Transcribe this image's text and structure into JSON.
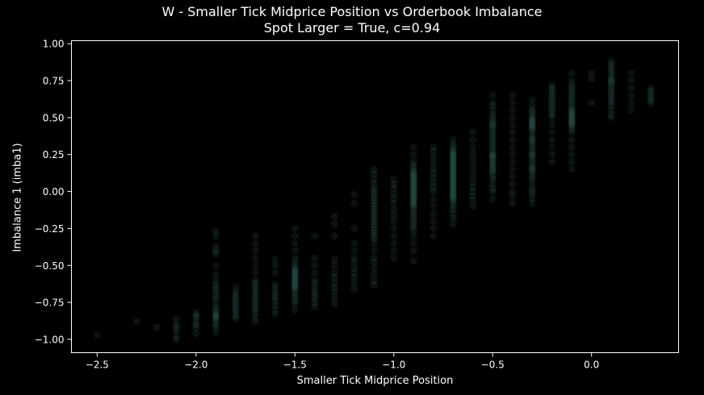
{
  "chart_data": {
    "type": "scatter",
    "title": "W - Smaller Tick Midprice Position vs Orderbook Imbalance",
    "subtitle": "Spot Larger = True, c=0.94",
    "xlabel": "Smaller Tick Midprice Position",
    "ylabel": "Imbalance 1 (imba1)",
    "xlim": [
      -2.63,
      0.44
    ],
    "ylim": [
      -1.09,
      1.02
    ],
    "xticks": [
      -2.5,
      -2.0,
      -1.5,
      -1.0,
      -0.5,
      0.0
    ],
    "xtick_labels": [
      "−2.5",
      "−2.0",
      "−1.5",
      "−1.0",
      "−0.5",
      "0.0"
    ],
    "yticks": [
      -1.0,
      -0.75,
      -0.5,
      -0.25,
      0.0,
      0.25,
      0.5,
      0.75,
      1.0
    ],
    "ytick_labels": [
      "−1.00",
      "−0.75",
      "−0.50",
      "−0.25",
      "0.00",
      "0.25",
      "0.50",
      "0.75",
      "1.00"
    ],
    "grid": false,
    "marker_color": "#4a9e8c",
    "point_alpha": 0.12,
    "series": [
      {
        "name": "imba1",
        "x": [
          -2.5,
          -2.3,
          -2.2,
          -2.1,
          -2.1,
          -2.1,
          -2.1,
          -2.1,
          -2.1,
          -2.0,
          -2.0,
          -2.0,
          -2.0,
          -2.0,
          -2.0,
          -2.0,
          -1.9,
          -1.9,
          -1.9,
          -1.9,
          -1.9,
          -1.9,
          -1.9,
          -1.9,
          -1.9,
          -1.9,
          -1.9,
          -1.9,
          -1.9,
          -1.9,
          -1.9,
          -1.9,
          -1.9,
          -1.9,
          -1.9,
          -1.9,
          -1.9,
          -1.9,
          -1.9,
          -1.9,
          -1.9,
          -1.8,
          -1.8,
          -1.8,
          -1.8,
          -1.8,
          -1.8,
          -1.8,
          -1.8,
          -1.8,
          -1.8,
          -1.8,
          -1.7,
          -1.7,
          -1.7,
          -1.7,
          -1.7,
          -1.7,
          -1.7,
          -1.7,
          -1.7,
          -1.7,
          -1.7,
          -1.7,
          -1.7,
          -1.7,
          -1.7,
          -1.7,
          -1.7,
          -1.7,
          -1.7,
          -1.7,
          -1.6,
          -1.6,
          -1.6,
          -1.6,
          -1.6,
          -1.6,
          -1.6,
          -1.6,
          -1.6,
          -1.6,
          -1.6,
          -1.6,
          -1.5,
          -1.5,
          -1.5,
          -1.5,
          -1.5,
          -1.5,
          -1.5,
          -1.5,
          -1.5,
          -1.5,
          -1.5,
          -1.5,
          -1.5,
          -1.5,
          -1.5,
          -1.5,
          -1.5,
          -1.5,
          -1.5,
          -1.5,
          -1.5,
          -1.5,
          -1.5,
          -1.5,
          -1.5,
          -1.5,
          -1.5,
          -1.5,
          -1.4,
          -1.4,
          -1.4,
          -1.4,
          -1.4,
          -1.4,
          -1.4,
          -1.4,
          -1.4,
          -1.4,
          -1.4,
          -1.4,
          -1.3,
          -1.3,
          -1.3,
          -1.3,
          -1.3,
          -1.3,
          -1.3,
          -1.3,
          -1.3,
          -1.3,
          -1.3,
          -1.3,
          -1.2,
          -1.2,
          -1.2,
          -1.2,
          -1.2,
          -1.2,
          -1.2,
          -1.2,
          -1.2,
          -1.2,
          -1.2,
          -1.2,
          -1.1,
          -1.1,
          -1.1,
          -1.1,
          -1.1,
          -1.1,
          -1.1,
          -1.1,
          -1.1,
          -1.1,
          -1.1,
          -1.1,
          -1.1,
          -1.1,
          -1.1,
          -1.1,
          -1.1,
          -1.1,
          -1.1,
          -1.1,
          -1.1,
          -1.1,
          -1.1,
          -1.1,
          -1.1,
          -1.1,
          -1.1,
          -1.1,
          -1.1,
          -1.1,
          -1.0,
          -1.0,
          -1.0,
          -1.0,
          -1.0,
          -1.0,
          -1.0,
          -1.0,
          -1.0,
          -1.0,
          -1.0,
          -1.0,
          -1.0,
          -1.0,
          -0.9,
          -0.9,
          -0.9,
          -0.9,
          -0.9,
          -0.9,
          -0.9,
          -0.9,
          -0.9,
          -0.9,
          -0.9,
          -0.9,
          -0.9,
          -0.9,
          -0.9,
          -0.9,
          -0.9,
          -0.9,
          -0.9,
          -0.9,
          -0.9,
          -0.9,
          -0.9,
          -0.9,
          -0.9,
          -0.9,
          -0.9,
          -0.9,
          -0.9,
          -0.9,
          -0.9,
          -0.9,
          -0.9,
          -0.9,
          -0.9,
          -0.9,
          -0.9,
          -0.9,
          -0.9,
          -0.9,
          -0.9,
          -0.9,
          -0.8,
          -0.8,
          -0.8,
          -0.8,
          -0.8,
          -0.8,
          -0.8,
          -0.8,
          -0.8,
          -0.8,
          -0.8,
          -0.8,
          -0.8,
          -0.8,
          -0.8,
          -0.8,
          -0.7,
          -0.7,
          -0.7,
          -0.7,
          -0.7,
          -0.7,
          -0.7,
          -0.7,
          -0.7,
          -0.7,
          -0.7,
          -0.7,
          -0.7,
          -0.7,
          -0.7,
          -0.7,
          -0.7,
          -0.7,
          -0.7,
          -0.7,
          -0.7,
          -0.7,
          -0.7,
          -0.7,
          -0.7,
          -0.7,
          -0.7,
          -0.7,
          -0.7,
          -0.7,
          -0.7,
          -0.7,
          -0.7,
          -0.7,
          -0.7,
          -0.7,
          -0.7,
          -0.7,
          -0.7,
          -0.7,
          -0.7,
          -0.7,
          -0.7,
          -0.7,
          -0.6,
          -0.6,
          -0.6,
          -0.6,
          -0.6,
          -0.6,
          -0.6,
          -0.6,
          -0.6,
          -0.6,
          -0.6,
          -0.6,
          -0.6,
          -0.6,
          -0.5,
          -0.5,
          -0.5,
          -0.5,
          -0.5,
          -0.5,
          -0.5,
          -0.5,
          -0.5,
          -0.5,
          -0.5,
          -0.5,
          -0.5,
          -0.5,
          -0.5,
          -0.5,
          -0.5,
          -0.5,
          -0.5,
          -0.5,
          -0.5,
          -0.5,
          -0.5,
          -0.5,
          -0.5,
          -0.5,
          -0.5,
          -0.5,
          -0.5,
          -0.5,
          -0.5,
          -0.5,
          -0.5,
          -0.5,
          -0.5,
          -0.5,
          -0.4,
          -0.4,
          -0.4,
          -0.4,
          -0.4,
          -0.4,
          -0.4,
          -0.4,
          -0.4,
          -0.4,
          -0.4,
          -0.4,
          -0.4,
          -0.4,
          -0.4,
          -0.4,
          -0.3,
          -0.3,
          -0.3,
          -0.3,
          -0.3,
          -0.3,
          -0.3,
          -0.3,
          -0.3,
          -0.3,
          -0.3,
          -0.3,
          -0.3,
          -0.3,
          -0.3,
          -0.3,
          -0.3,
          -0.3,
          -0.3,
          -0.3,
          -0.3,
          -0.3,
          -0.3,
          -0.3,
          -0.3,
          -0.3,
          -0.3,
          -0.3,
          -0.3,
          -0.3,
          -0.3,
          -0.3,
          -0.3,
          -0.3,
          -0.3,
          -0.3,
          -0.3,
          -0.3,
          -0.3,
          -0.3,
          -0.2,
          -0.2,
          -0.2,
          -0.2,
          -0.2,
          -0.2,
          -0.2,
          -0.2,
          -0.2,
          -0.2,
          -0.2,
          -0.2,
          -0.2,
          -0.2,
          -0.2,
          -0.2,
          -0.2,
          -0.2,
          -0.1,
          -0.1,
          -0.1,
          -0.1,
          -0.1,
          -0.1,
          -0.1,
          -0.1,
          -0.1,
          -0.1,
          -0.1,
          -0.1,
          -0.1,
          -0.1,
          -0.1,
          -0.1,
          -0.1,
          -0.1,
          -0.1,
          -0.1,
          -0.1,
          -0.1,
          -0.1,
          -0.1,
          -0.1,
          -0.1,
          -0.1,
          -0.1,
          -0.1,
          -0.1,
          0.0,
          0.0,
          0.0,
          0.1,
          0.1,
          0.1,
          0.1,
          0.1,
          0.1,
          0.1,
          0.1,
          0.1,
          0.1,
          0.1,
          0.1,
          0.1,
          0.1,
          0.1,
          0.1,
          0.1,
          0.1,
          0.1,
          0.1,
          0.2,
          0.2,
          0.2,
          0.2,
          0.2,
          0.2,
          0.3,
          0.3,
          0.3,
          0.3,
          0.3,
          0.3
        ],
        "y": [
          -0.97,
          -0.88,
          -0.92,
          -0.9,
          -0.94,
          -0.98,
          -1.0,
          -0.86,
          -0.92,
          -0.82,
          -0.85,
          -0.88,
          -0.92,
          -0.96,
          -0.9,
          -0.84,
          -0.95,
          -0.92,
          -0.9,
          -0.88,
          -0.86,
          -0.85,
          -0.84,
          -0.83,
          -0.82,
          -0.8,
          -0.78,
          -0.75,
          -0.72,
          -0.7,
          -0.67,
          -0.65,
          -0.63,
          -0.6,
          -0.56,
          -0.5,
          -0.42,
          -0.4,
          -0.37,
          -0.3,
          -0.27,
          -0.65,
          -0.68,
          -0.7,
          -0.72,
          -0.74,
          -0.76,
          -0.78,
          -0.8,
          -0.82,
          -0.84,
          -0.86,
          -0.88,
          -0.85,
          -0.82,
          -0.8,
          -0.78,
          -0.76,
          -0.74,
          -0.72,
          -0.7,
          -0.68,
          -0.66,
          -0.64,
          -0.62,
          -0.6,
          -0.55,
          -0.5,
          -0.45,
          -0.4,
          -0.35,
          -0.3,
          -0.83,
          -0.8,
          -0.77,
          -0.74,
          -0.72,
          -0.7,
          -0.68,
          -0.65,
          -0.63,
          -0.55,
          -0.5,
          -0.46,
          -0.8,
          -0.76,
          -0.74,
          -0.72,
          -0.7,
          -0.68,
          -0.66,
          -0.65,
          -0.64,
          -0.63,
          -0.62,
          -0.61,
          -0.6,
          -0.59,
          -0.58,
          -0.57,
          -0.56,
          -0.55,
          -0.54,
          -0.53,
          -0.52,
          -0.5,
          -0.48,
          -0.45,
          -0.4,
          -0.35,
          -0.3,
          -0.25,
          -0.78,
          -0.75,
          -0.72,
          -0.7,
          -0.68,
          -0.65,
          -0.62,
          -0.6,
          -0.55,
          -0.5,
          -0.45,
          -0.3,
          -0.76,
          -0.72,
          -0.68,
          -0.65,
          -0.62,
          -0.58,
          -0.55,
          -0.5,
          -0.46,
          -0.3,
          -0.22,
          -0.17,
          -0.66,
          -0.62,
          -0.58,
          -0.55,
          -0.52,
          -0.48,
          -0.45,
          -0.4,
          -0.35,
          -0.25,
          -0.08,
          -0.02,
          -0.63,
          -0.6,
          -0.56,
          -0.52,
          -0.48,
          -0.45,
          -0.4,
          -0.35,
          -0.32,
          -0.3,
          -0.28,
          -0.26,
          -0.24,
          -0.22,
          -0.2,
          -0.18,
          -0.16,
          -0.14,
          -0.12,
          -0.1,
          -0.08,
          -0.06,
          -0.04,
          -0.02,
          0.0,
          0.02,
          0.05,
          0.08,
          0.12,
          0.15,
          -0.45,
          -0.4,
          -0.35,
          -0.3,
          -0.25,
          -0.2,
          -0.16,
          -0.12,
          -0.08,
          -0.05,
          -0.02,
          0.02,
          0.05,
          0.08,
          -0.47,
          -0.4,
          -0.35,
          -0.3,
          -0.26,
          -0.24,
          -0.22,
          -0.2,
          -0.18,
          -0.16,
          -0.14,
          -0.12,
          -0.1,
          -0.09,
          -0.08,
          -0.07,
          -0.06,
          -0.05,
          -0.04,
          -0.03,
          -0.02,
          -0.01,
          0.0,
          0.01,
          0.02,
          0.03,
          0.04,
          0.05,
          0.06,
          0.07,
          0.08,
          0.09,
          0.1,
          0.11,
          0.12,
          0.13,
          0.14,
          0.16,
          0.18,
          0.2,
          0.25,
          0.3,
          -0.3,
          -0.25,
          -0.2,
          -0.15,
          -0.1,
          -0.05,
          0.0,
          0.03,
          0.06,
          0.09,
          0.12,
          0.15,
          0.19,
          0.23,
          0.27,
          0.3,
          -0.22,
          -0.18,
          -0.15,
          -0.12,
          -0.1,
          -0.08,
          -0.06,
          -0.05,
          -0.04,
          -0.03,
          -0.02,
          -0.01,
          0.0,
          0.01,
          0.02,
          0.03,
          0.04,
          0.05,
          0.06,
          0.07,
          0.08,
          0.09,
          0.1,
          0.11,
          0.12,
          0.13,
          0.14,
          0.15,
          0.16,
          0.17,
          0.18,
          0.19,
          0.2,
          0.21,
          0.22,
          0.23,
          0.24,
          0.25,
          0.26,
          0.27,
          0.28,
          0.3,
          0.32,
          0.35,
          -0.1,
          -0.06,
          -0.03,
          0.0,
          0.03,
          0.06,
          0.1,
          0.14,
          0.18,
          0.22,
          0.26,
          0.3,
          0.35,
          0.4,
          -0.05,
          0.0,
          0.02,
          0.05,
          0.08,
          0.1,
          0.12,
          0.14,
          0.15,
          0.16,
          0.18,
          0.19,
          0.2,
          0.22,
          0.23,
          0.24,
          0.25,
          0.26,
          0.28,
          0.3,
          0.32,
          0.34,
          0.36,
          0.38,
          0.4,
          0.42,
          0.44,
          0.45,
          0.46,
          0.48,
          0.5,
          0.52,
          0.55,
          0.58,
          0.6,
          0.65,
          -0.08,
          -0.03,
          0.0,
          0.05,
          0.1,
          0.15,
          0.2,
          0.25,
          0.3,
          0.35,
          0.4,
          0.45,
          0.5,
          0.55,
          0.6,
          0.65,
          -0.08,
          -0.05,
          -0.02,
          0.0,
          0.02,
          0.05,
          0.08,
          0.1,
          0.12,
          0.14,
          0.15,
          0.16,
          0.18,
          0.2,
          0.22,
          0.24,
          0.25,
          0.26,
          0.28,
          0.3,
          0.32,
          0.34,
          0.35,
          0.36,
          0.38,
          0.4,
          0.42,
          0.43,
          0.44,
          0.45,
          0.46,
          0.47,
          0.48,
          0.49,
          0.5,
          0.52,
          0.54,
          0.55,
          0.58,
          0.62,
          0.2,
          0.25,
          0.3,
          0.35,
          0.4,
          0.45,
          0.5,
          0.52,
          0.54,
          0.56,
          0.58,
          0.6,
          0.62,
          0.64,
          0.66,
          0.68,
          0.7,
          0.72,
          0.15,
          0.2,
          0.25,
          0.3,
          0.35,
          0.4,
          0.42,
          0.44,
          0.45,
          0.46,
          0.47,
          0.48,
          0.49,
          0.5,
          0.51,
          0.52,
          0.53,
          0.54,
          0.55,
          0.56,
          0.58,
          0.6,
          0.62,
          0.64,
          0.66,
          0.68,
          0.7,
          0.72,
          0.75,
          0.8,
          0.6,
          0.76,
          0.8,
          0.5,
          0.52,
          0.55,
          0.58,
          0.6,
          0.62,
          0.64,
          0.66,
          0.68,
          0.7,
          0.72,
          0.74,
          0.75,
          0.76,
          0.78,
          0.8,
          0.82,
          0.84,
          0.86,
          0.88,
          0.55,
          0.6,
          0.65,
          0.7,
          0.75,
          0.8,
          0.6,
          0.62,
          0.64,
          0.66,
          0.68,
          0.7
        ]
      }
    ]
  }
}
